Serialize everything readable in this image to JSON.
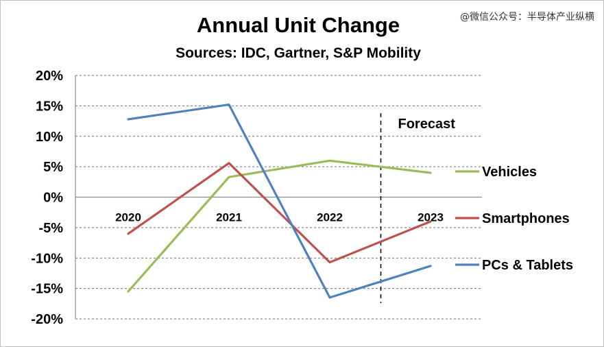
{
  "watermark": "@微信公众号：半导体产业纵横",
  "chart_data": {
    "type": "line",
    "title": "Annual Unit Change",
    "subtitle": "Sources: IDC, Gartner, S&P Mobility",
    "categories": [
      "2020",
      "2021",
      "2022",
      "2023"
    ],
    "ylim": [
      -20,
      20
    ],
    "yticks": [
      20,
      15,
      10,
      5,
      0,
      -5,
      -10,
      -15,
      -20
    ],
    "ytick_labels": [
      "20%",
      "15%",
      "10%",
      "5%",
      "0%",
      "-5%",
      "-10%",
      "-15%",
      "-20%"
    ],
    "grid": true,
    "forecast_label": "Forecast",
    "forecast_start_between": [
      "2022",
      "2023"
    ],
    "legend_position": "right",
    "series": [
      {
        "name": "Vehicles",
        "color": "#9bbb59",
        "values": [
          -15.5,
          3.3,
          6.0,
          4.0
        ]
      },
      {
        "name": "Smartphones",
        "color": "#c0504d",
        "values": [
          -6.0,
          5.6,
          -10.7,
          -4.0
        ]
      },
      {
        "name": "PCs & Tablets",
        "color": "#4f81bd",
        "values": [
          12.8,
          15.2,
          -16.5,
          -11.3
        ]
      }
    ]
  }
}
